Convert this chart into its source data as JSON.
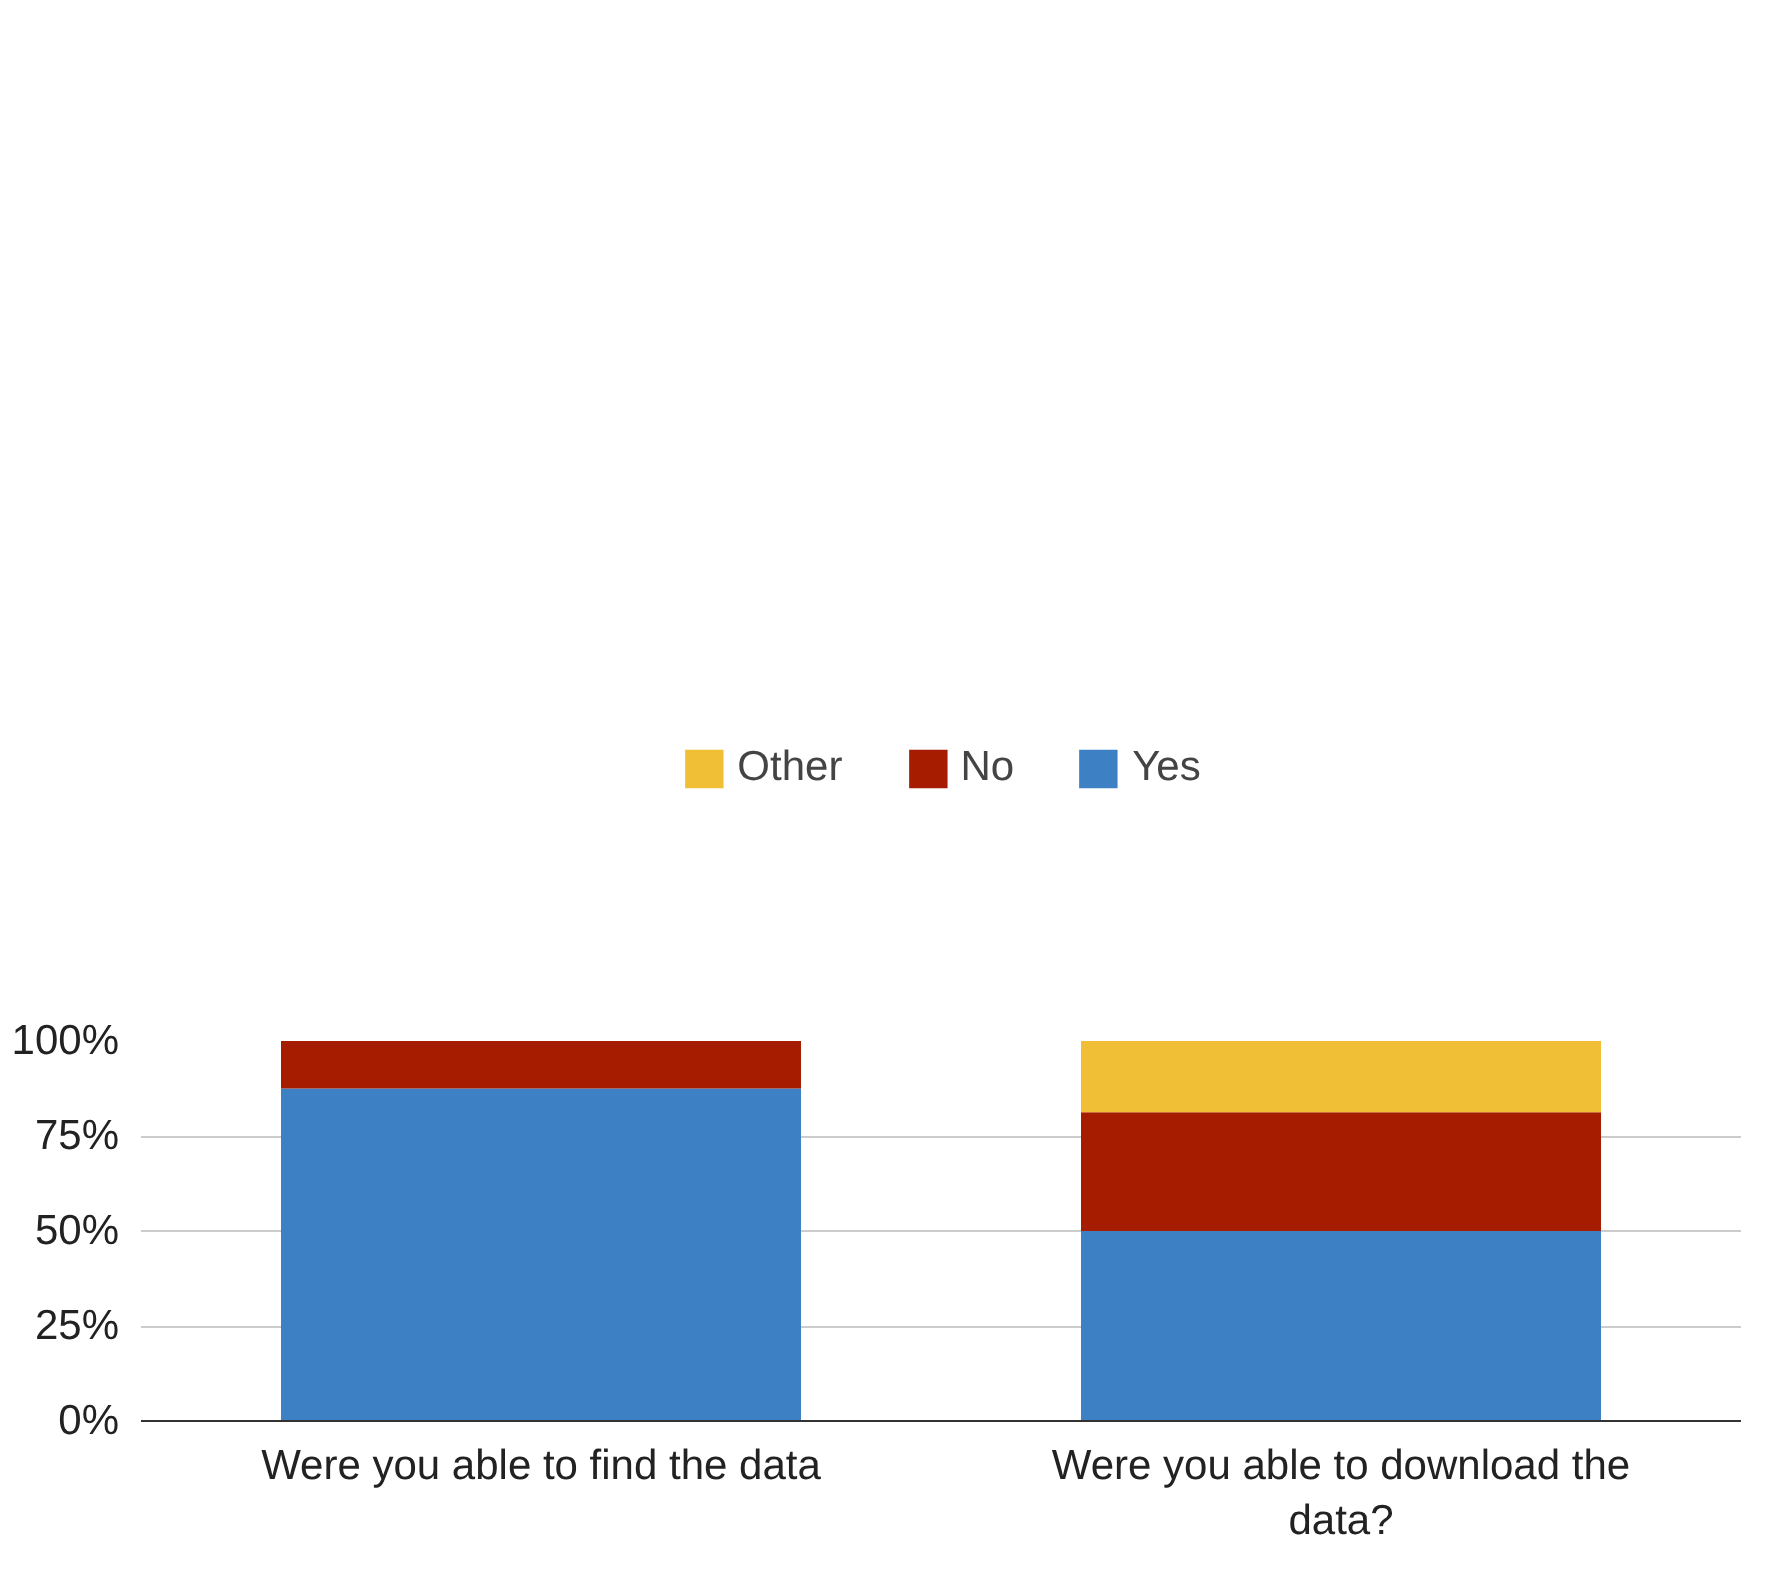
{
  "chart_data": {
    "type": "bar",
    "stacked": true,
    "categories": [
      "Were you able to find the data",
      "Were you able to download the data?"
    ],
    "series": [
      {
        "name": "Yes",
        "color": "#3d80c3",
        "values": [
          87.5,
          50
        ]
      },
      {
        "name": "No",
        "color": "#a51c00",
        "values": [
          12.5,
          31.25
        ]
      },
      {
        "name": "Other",
        "color": "#f0bf35",
        "values": [
          0,
          18.75
        ]
      }
    ],
    "ylim": [
      0,
      100
    ],
    "yticks": [
      {
        "value": 0,
        "label": "0%"
      },
      {
        "value": 25,
        "label": "25%"
      },
      {
        "value": 50,
        "label": "50%"
      },
      {
        "value": 75,
        "label": "75%"
      },
      {
        "value": 100,
        "label": "100%"
      }
    ],
    "grid": "y",
    "legend": "top"
  }
}
